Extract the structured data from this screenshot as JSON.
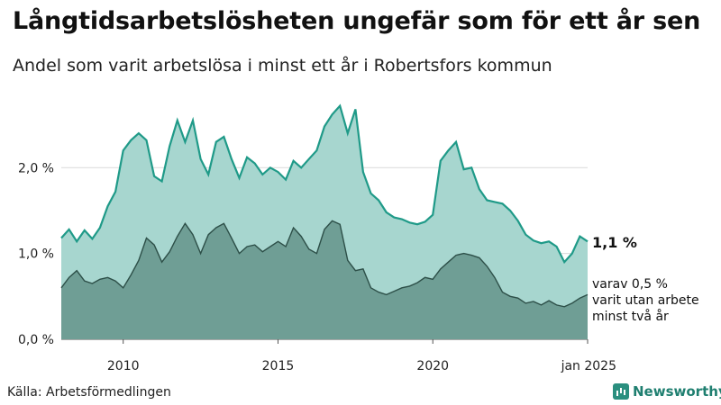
{
  "title": "Långtidsarbetslösheten ungefär som för ett år sen",
  "subtitle": "Andel som varit arbetslösa i minst ett år i Robertsfors kommun",
  "source": "Källa: Arbetsförmedlingen",
  "brand": "Newsworthy",
  "colors": {
    "line_total": "#1f9a88",
    "fill_total": "#a7d6cf",
    "line_long": "#2d4f48",
    "fill_long": "#6f9e95",
    "grid": "#d9d9d9"
  },
  "chart_data": {
    "type": "area",
    "title": "Långtidsarbetslösheten ungefär som för ett år sen",
    "subtitle": "Andel som varit arbetslösa i minst ett år i Robertsfors kommun",
    "ylabel": "",
    "xlim": [
      2008.0,
      2025.0
    ],
    "ylim": [
      0,
      2.8
    ],
    "y_ticks": [
      0.0,
      1.0,
      2.0
    ],
    "y_tick_labels": [
      "0,0 %",
      "1,0 %",
      "2,0 %"
    ],
    "x_ticks": [
      2010,
      2015,
      2020,
      2025
    ],
    "x_tick_labels": [
      "2010",
      "2015",
      "2020",
      "jan 2025"
    ],
    "grid": true,
    "x": [
      2008.0,
      2008.25,
      2008.5,
      2008.75,
      2009.0,
      2009.25,
      2009.5,
      2009.75,
      2010.0,
      2010.25,
      2010.5,
      2010.75,
      2011.0,
      2011.25,
      2011.5,
      2011.75,
      2012.0,
      2012.25,
      2012.5,
      2012.75,
      2013.0,
      2013.25,
      2013.5,
      2013.75,
      2014.0,
      2014.25,
      2014.5,
      2014.75,
      2015.0,
      2015.25,
      2015.5,
      2015.75,
      2016.0,
      2016.25,
      2016.5,
      2016.75,
      2017.0,
      2017.25,
      2017.5,
      2017.75,
      2018.0,
      2018.25,
      2018.5,
      2018.75,
      2019.0,
      2019.25,
      2019.5,
      2019.75,
      2020.0,
      2020.25,
      2020.5,
      2020.75,
      2021.0,
      2021.25,
      2021.5,
      2021.75,
      2022.0,
      2022.25,
      2022.5,
      2022.75,
      2023.0,
      2023.25,
      2023.5,
      2023.75,
      2024.0,
      2024.25,
      2024.5,
      2024.75,
      2025.0
    ],
    "series": [
      {
        "values": [
          1.18,
          1.28,
          1.14,
          1.27,
          1.17,
          1.3,
          1.55,
          1.72,
          2.2,
          2.32,
          2.4,
          2.32,
          1.9,
          1.84,
          2.25,
          2.55,
          2.3,
          2.55,
          2.1,
          1.92,
          2.3,
          2.36,
          2.1,
          1.88,
          2.12,
          2.05,
          1.92,
          2.0,
          1.95,
          1.86,
          2.08,
          2.0,
          2.1,
          2.2,
          2.48,
          2.62,
          2.72,
          2.4,
          2.68,
          1.95,
          1.7,
          1.62,
          1.48,
          1.42,
          1.4,
          1.36,
          1.34,
          1.37,
          1.45,
          2.08,
          2.2,
          2.3,
          1.98,
          2.0,
          1.75,
          1.62,
          1.6,
          1.58,
          1.5,
          1.38,
          1.22,
          1.15,
          1.12,
          1.14,
          1.08,
          0.9,
          1.0,
          1.2,
          1.14
        ]
      },
      {
        "values": [
          0.6,
          0.72,
          0.8,
          0.68,
          0.65,
          0.7,
          0.72,
          0.68,
          0.6,
          0.75,
          0.92,
          1.18,
          1.1,
          0.9,
          1.02,
          1.2,
          1.35,
          1.22,
          1.0,
          1.22,
          1.3,
          1.35,
          1.18,
          1.0,
          1.08,
          1.1,
          1.02,
          1.08,
          1.14,
          1.08,
          1.3,
          1.2,
          1.05,
          1.0,
          1.28,
          1.38,
          1.34,
          0.92,
          0.8,
          0.82,
          0.6,
          0.55,
          0.52,
          0.56,
          0.6,
          0.62,
          0.66,
          0.72,
          0.7,
          0.82,
          0.9,
          0.98,
          1.0,
          0.98,
          0.95,
          0.85,
          0.72,
          0.55,
          0.5,
          0.48,
          0.42,
          0.44,
          0.4,
          0.45,
          0.4,
          0.38,
          0.42,
          0.48,
          0.52
        ]
      }
    ],
    "annotations": [
      "1,1 %",
      "varav 0,5 %",
      "varit utan arbete",
      "minst två år"
    ]
  }
}
